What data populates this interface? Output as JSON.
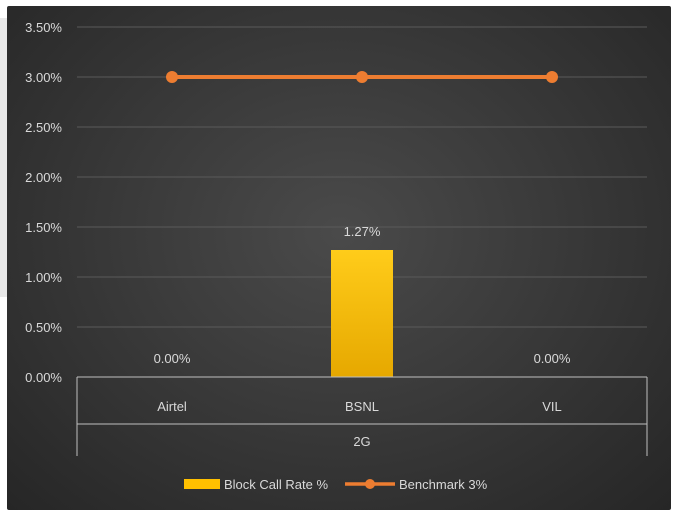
{
  "chart_data": {
    "type": "bar",
    "group_label": "2G",
    "categories": [
      "Airtel",
      "BSNL",
      "VIL"
    ],
    "series": [
      {
        "name": "Block Call Rate %",
        "type": "bar",
        "values": [
          0.0,
          1.27,
          0.0
        ],
        "data_labels": [
          "0.00%",
          "1.27%",
          "0.00%"
        ],
        "color": "#FFC000"
      },
      {
        "name": "Benchmark 3%",
        "type": "line",
        "values": [
          3.0,
          3.0,
          3.0
        ],
        "color": "#ED7D31"
      }
    ],
    "ylim": [
      0,
      3.5
    ],
    "yticks": [
      0,
      0.5,
      1.0,
      1.5,
      2.0,
      2.5,
      3.0,
      3.5
    ],
    "ytick_labels": [
      "0.00%",
      "0.50%",
      "1.00%",
      "1.50%",
      "2.00%",
      "2.50%",
      "3.00%",
      "3.50%"
    ],
    "legend_position": "bottom",
    "grid": true
  }
}
